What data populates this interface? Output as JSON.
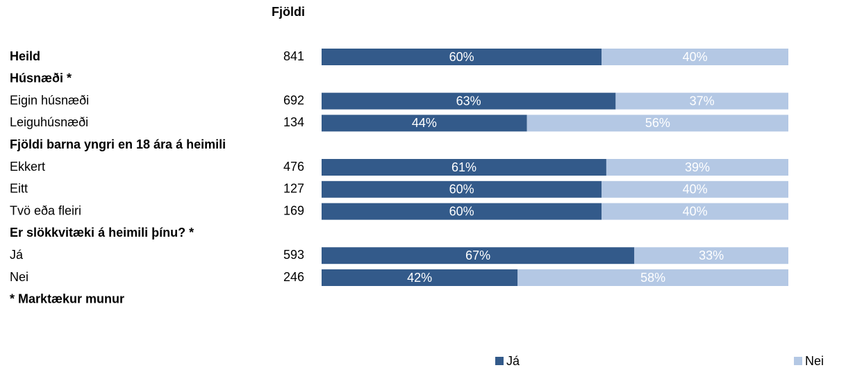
{
  "chart_data": {
    "type": "bar_stacked_horizontal",
    "count_header": "Fjöldi",
    "categories": [
      "Heild",
      "Húsnæði *",
      "Eigin húsnæði",
      "Leiguhúsnæði",
      "Fjöldi barna yngri en 18 ára á heimili",
      "Ekkert",
      "Eitt",
      "Tvö eða fleiri",
      "Er slökkvitæki á heimili þínu? *",
      "Já",
      "Nei"
    ],
    "counts": [
      841,
      null,
      692,
      134,
      null,
      476,
      127,
      169,
      null,
      593,
      246
    ],
    "series": [
      {
        "name": "Já",
        "color": "#335a8a",
        "values": [
          60,
          null,
          63,
          44,
          null,
          61,
          60,
          60,
          null,
          67,
          42
        ],
        "value_labels": [
          "60%",
          null,
          "63%",
          "44%",
          null,
          "61%",
          "60%",
          "60%",
          null,
          "67%",
          "42%"
        ]
      },
      {
        "name": "Nei",
        "color": "#b4c8e4",
        "values": [
          40,
          null,
          37,
          56,
          null,
          39,
          40,
          40,
          null,
          33,
          58
        ],
        "value_labels": [
          "40%",
          null,
          "37%",
          "56%",
          null,
          "39%",
          "40%",
          "40%",
          null,
          "33%",
          "58%"
        ]
      }
    ],
    "xlim": [
      0,
      100
    ],
    "note": "* Marktækur munur",
    "legend": "bottom"
  }
}
